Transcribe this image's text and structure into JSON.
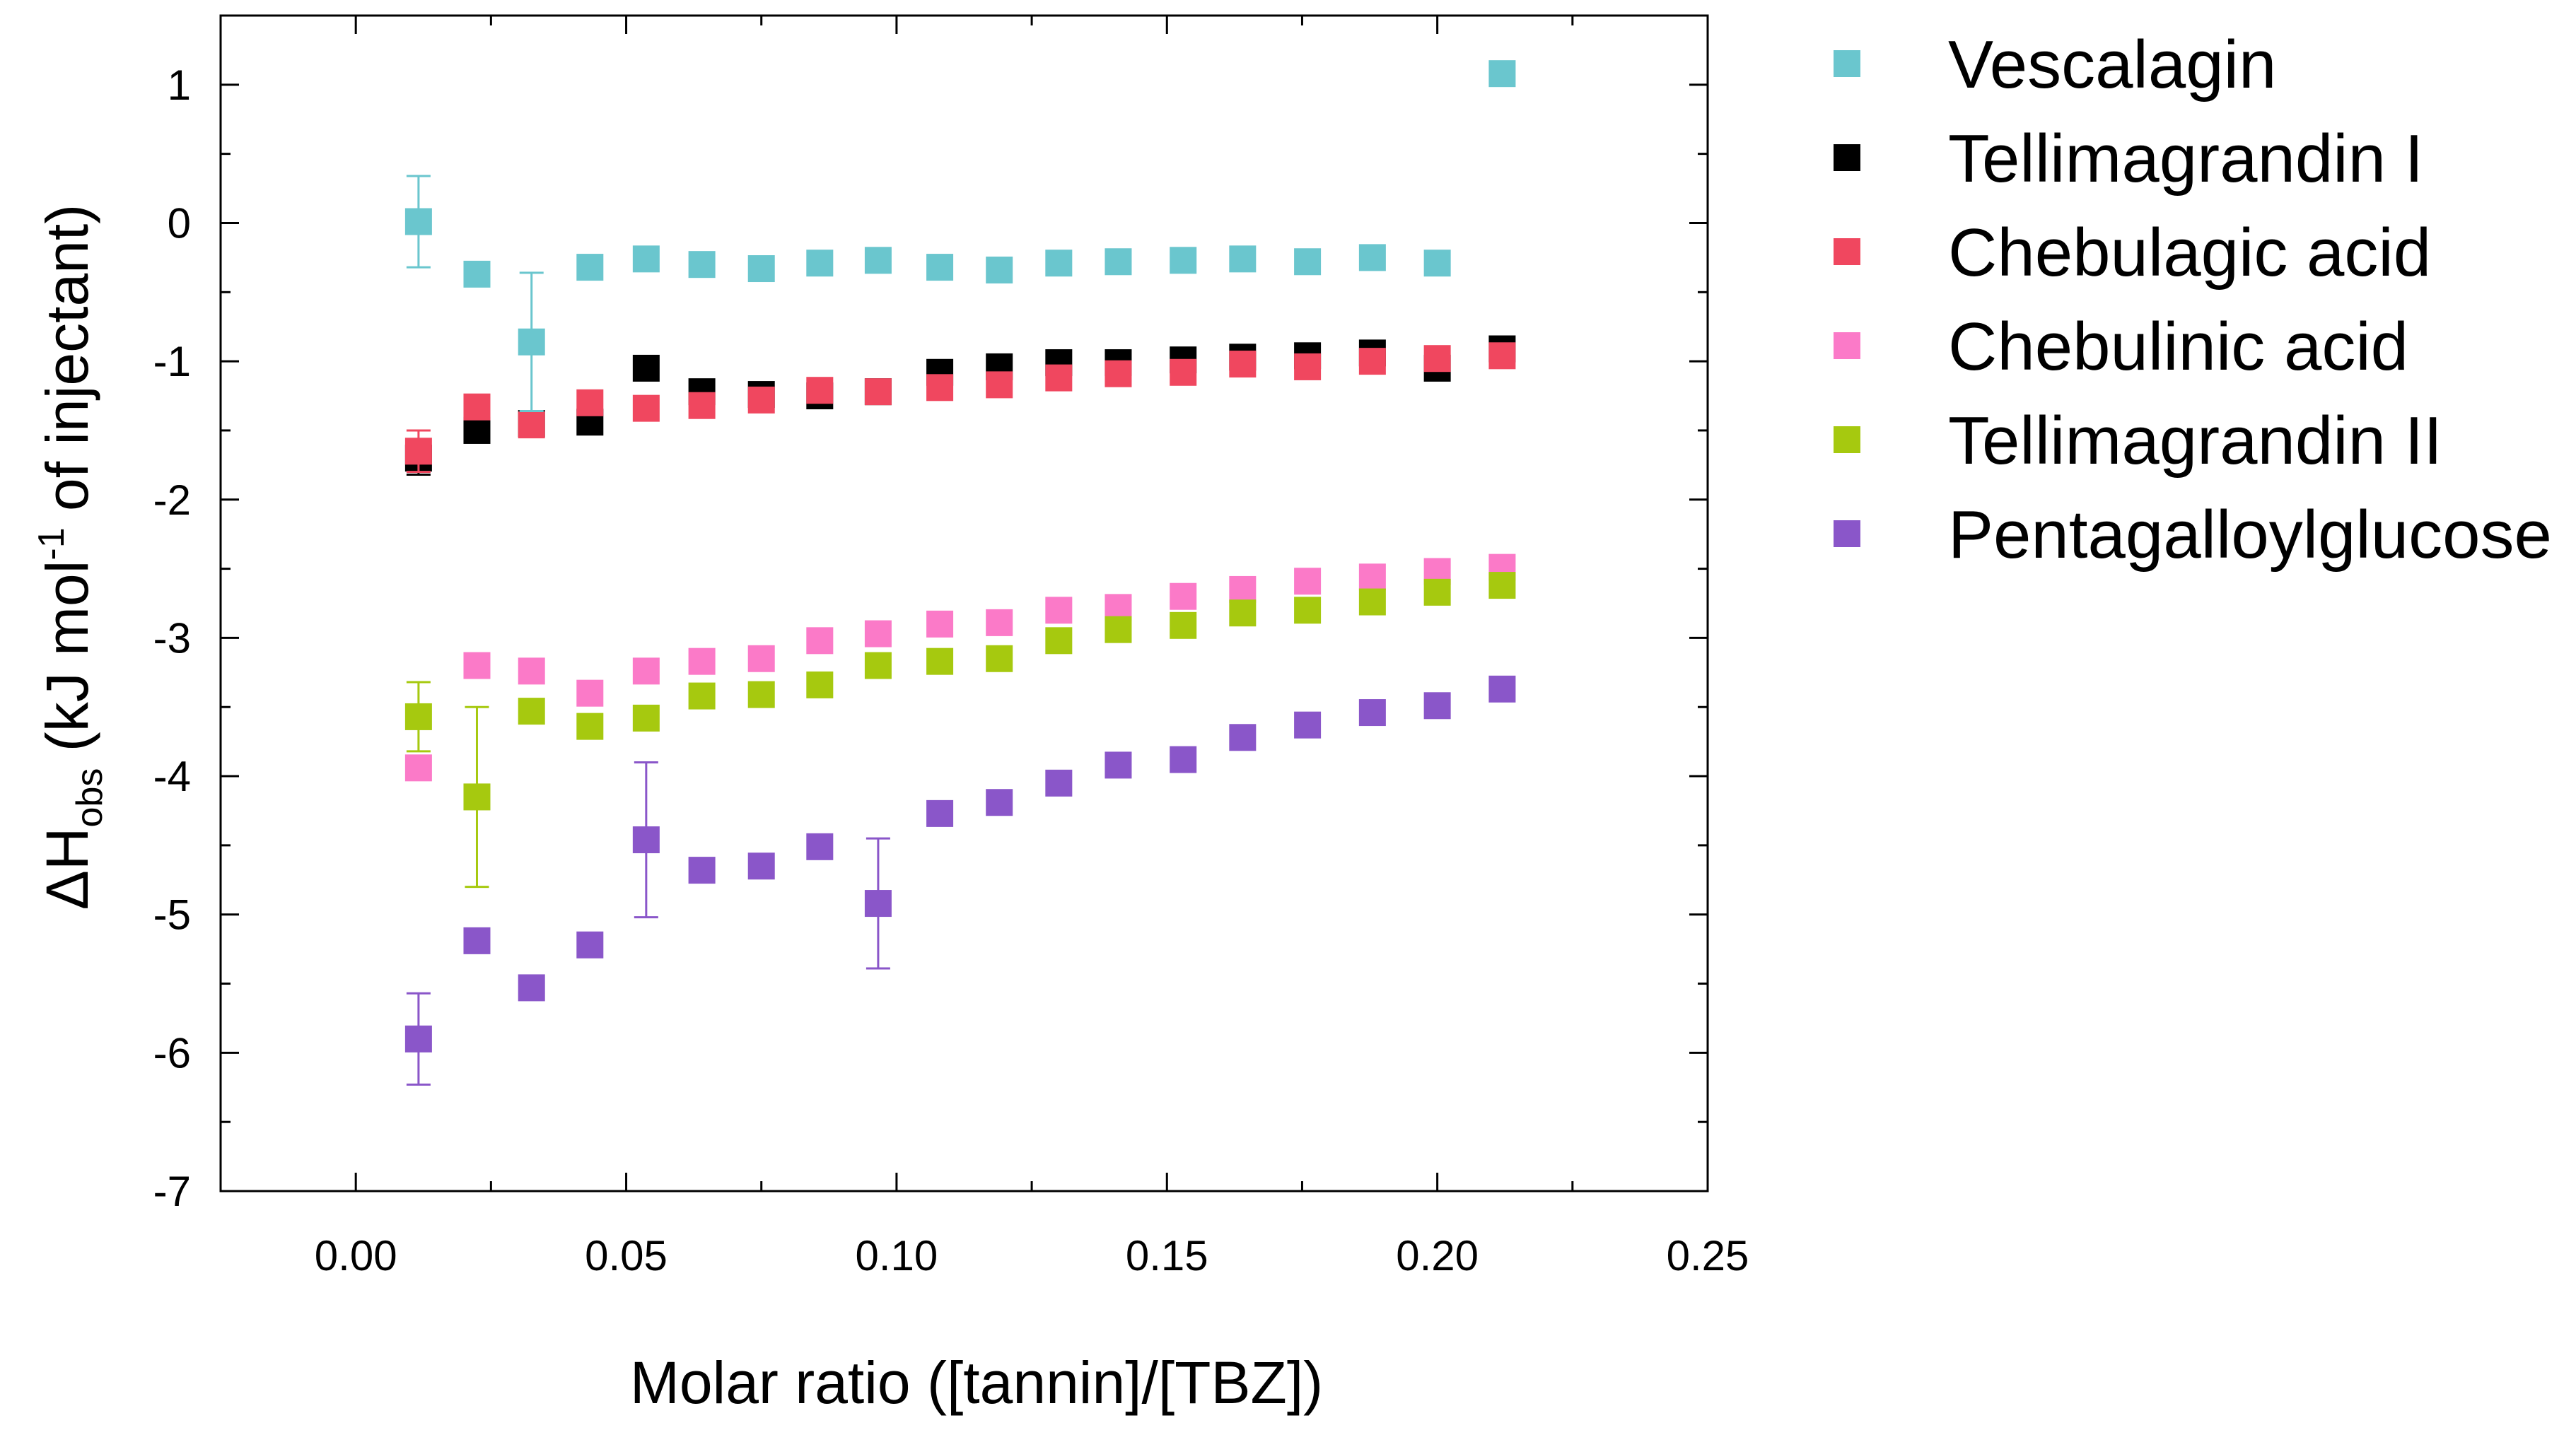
{
  "chart_data": {
    "type": "scatter",
    "title": "",
    "xlabel": "Molar ratio ([tannin]/[TBZ])",
    "ylabel": {
      "prefix": "ΔH",
      "subscript": "obs",
      "middle": " (kJ mol",
      "superscript": "-1",
      "suffix": " of injectant)"
    },
    "xlim": [
      -0.025,
      0.25
    ],
    "ylim": [
      -7,
      1.5
    ],
    "xticks": [
      {
        "value": 0.0,
        "label": "0.00"
      },
      {
        "value": 0.05,
        "label": "0.05"
      },
      {
        "value": 0.1,
        "label": "0.10"
      },
      {
        "value": 0.15,
        "label": "0.15"
      },
      {
        "value": 0.2,
        "label": "0.20"
      },
      {
        "value": 0.25,
        "label": "0.25"
      }
    ],
    "xminor": [
      -0.025,
      0.025,
      0.075,
      0.125,
      0.175,
      0.225
    ],
    "yticks": [
      {
        "value": 1,
        "label": "1"
      },
      {
        "value": 0,
        "label": "0"
      },
      {
        "value": -1,
        "label": "-1"
      },
      {
        "value": -2,
        "label": "-2"
      },
      {
        "value": -3,
        "label": "-3"
      },
      {
        "value": -4,
        "label": "-4"
      },
      {
        "value": -5,
        "label": "-5"
      },
      {
        "value": -6,
        "label": "-6"
      },
      {
        "value": -7,
        "label": "-7"
      }
    ],
    "yminor": [
      1.5,
      0.5,
      -0.5,
      -1.5,
      -2.5,
      -3.5,
      -4.5,
      -5.5,
      -6.5
    ],
    "legend_position": "outside-right",
    "series": [
      {
        "name": "Tellimagrandin I",
        "color": "#000000",
        "x": [
          0.0116,
          0.0224,
          0.0325,
          0.0433,
          0.0537,
          0.064,
          0.075,
          0.0858,
          0.0966,
          0.108,
          0.119,
          0.13,
          0.141,
          0.153,
          0.164,
          0.176,
          0.188,
          0.2,
          0.212
        ],
        "y": [
          -1.7,
          -1.5,
          -1.45,
          -1.44,
          -1.05,
          -1.22,
          -1.24,
          -1.25,
          -1.22,
          -1.08,
          -1.04,
          -1.01,
          -1.01,
          -0.99,
          -0.97,
          -0.96,
          -0.94,
          -1.05,
          -0.91
        ],
        "err": [
          0.12,
          0,
          0,
          0,
          0,
          0,
          0,
          0,
          0,
          0,
          0,
          0,
          0,
          0,
          0,
          0,
          0,
          0,
          0
        ]
      },
      {
        "name": "Chebulagic acid",
        "color": "#f0475f",
        "x": [
          0.0116,
          0.0224,
          0.0325,
          0.0433,
          0.0537,
          0.064,
          0.075,
          0.0858,
          0.0966,
          0.108,
          0.119,
          0.13,
          0.141,
          0.153,
          0.164,
          0.176,
          0.188,
          0.2,
          0.212
        ],
        "y": [
          -1.65,
          -1.33,
          -1.46,
          -1.3,
          -1.34,
          -1.32,
          -1.28,
          -1.21,
          -1.22,
          -1.19,
          -1.17,
          -1.12,
          -1.09,
          -1.08,
          -1.02,
          -1.04,
          -1.0,
          -0.98,
          -0.96
        ],
        "err": [
          0.15,
          0,
          0,
          0,
          0,
          0,
          0,
          0,
          0,
          0,
          0,
          0,
          0,
          0,
          0,
          0,
          0,
          0,
          0
        ]
      },
      {
        "name": "Vescalagin",
        "color": "#6ac6ce",
        "x": [
          0.0116,
          0.0224,
          0.0325,
          0.0433,
          0.0537,
          0.064,
          0.075,
          0.0858,
          0.0966,
          0.108,
          0.119,
          0.13,
          0.141,
          0.153,
          0.164,
          0.176,
          0.188,
          0.2,
          0.212
        ],
        "y": [
          0.01,
          -0.37,
          -0.86,
          -0.32,
          -0.26,
          -0.3,
          -0.33,
          -0.29,
          -0.27,
          -0.32,
          -0.34,
          -0.29,
          -0.28,
          -0.27,
          -0.26,
          -0.28,
          -0.25,
          -0.29,
          1.08
        ],
        "err": [
          0.33,
          0,
          0.5,
          0,
          0,
          0,
          0,
          0,
          0,
          0,
          0,
          0,
          0,
          0,
          0,
          0,
          0,
          0,
          0.05
        ]
      },
      {
        "name": "Chebulinic acid",
        "color": "#fb7ac8",
        "x": [
          0.0116,
          0.0224,
          0.0325,
          0.0433,
          0.0537,
          0.064,
          0.075,
          0.0858,
          0.0966,
          0.108,
          0.119,
          0.13,
          0.141,
          0.153,
          0.164,
          0.176,
          0.188,
          0.2,
          0.212
        ],
        "y": [
          -3.94,
          -3.2,
          -3.24,
          -3.4,
          -3.24,
          -3.17,
          -3.15,
          -3.02,
          -2.97,
          -2.9,
          -2.89,
          -2.8,
          -2.78,
          -2.7,
          -2.65,
          -2.59,
          -2.56,
          -2.52,
          -2.49
        ],
        "err": [
          0,
          0,
          0,
          0,
          0,
          0,
          0,
          0,
          0,
          0,
          0,
          0,
          0,
          0,
          0,
          0,
          0,
          0,
          0
        ]
      },
      {
        "name": "Tellimagrandin II",
        "color": "#a6c90f",
        "x": [
          0.0116,
          0.0224,
          0.0325,
          0.0433,
          0.0537,
          0.064,
          0.075,
          0.0858,
          0.0966,
          0.108,
          0.119,
          0.13,
          0.141,
          0.153,
          0.164,
          0.176,
          0.188,
          0.2,
          0.212
        ],
        "y": [
          -3.57,
          -4.15,
          -3.53,
          -3.64,
          -3.58,
          -3.42,
          -3.41,
          -3.34,
          -3.2,
          -3.17,
          -3.15,
          -3.02,
          -2.94,
          -2.91,
          -2.82,
          -2.8,
          -2.74,
          -2.67,
          -2.62
        ],
        "err": [
          0.25,
          0.65,
          0,
          0,
          0,
          0,
          0,
          0,
          0,
          0,
          0,
          0,
          0,
          0,
          0,
          0,
          0,
          0,
          0
        ]
      },
      {
        "name": "Pentagalloylglucose",
        "color": "#8a56c9",
        "x": [
          0.0116,
          0.0224,
          0.0325,
          0.0433,
          0.0537,
          0.064,
          0.075,
          0.0858,
          0.0966,
          0.108,
          0.119,
          0.13,
          0.141,
          0.153,
          0.164,
          0.176,
          0.188,
          0.2,
          0.212
        ],
        "y": [
          -5.9,
          -5.19,
          -5.53,
          -5.22,
          -4.46,
          -4.68,
          -4.65,
          -4.51,
          -4.92,
          -4.27,
          -4.19,
          -4.05,
          -3.92,
          -3.88,
          -3.72,
          -3.63,
          -3.54,
          -3.49,
          -3.37
        ],
        "err": [
          0.33,
          0,
          0,
          0,
          0.56,
          0,
          0,
          0,
          0.47,
          0,
          0,
          0,
          0,
          0,
          0,
          0,
          0,
          0,
          0
        ]
      }
    ],
    "legend_order": [
      "Vescalagin",
      "Tellimagrandin I",
      "Chebulagic acid",
      "Chebulinic acid",
      "Tellimagrandin II",
      "Pentagalloylglucose"
    ]
  }
}
